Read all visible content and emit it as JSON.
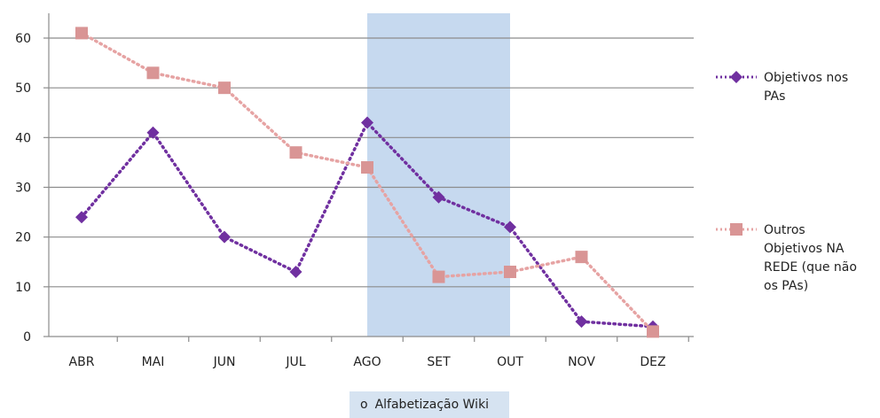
{
  "chart_data": {
    "type": "line",
    "categories": [
      "ABR",
      "MAI",
      "JUN",
      "JUL",
      "AGO",
      "SET",
      "OUT",
      "NOV",
      "DEZ"
    ],
    "ylim": [
      0,
      65
    ],
    "yticks": [
      0,
      10,
      20,
      30,
      40,
      50,
      60
    ],
    "grid": true,
    "legend_position": "right",
    "series": [
      {
        "name": "Objetivos nos PAs",
        "values": [
          24,
          41,
          20,
          13,
          43,
          28,
          22,
          3,
          2
        ],
        "color": "#7030a0",
        "marker": "diamond",
        "line_style": "dotted"
      },
      {
        "name": "Outros Objetivos NA REDE (que não os PAs)",
        "values": [
          61,
          53,
          50,
          37,
          34,
          12,
          13,
          16,
          1
        ],
        "color": "#e6a3a3",
        "marker_color": "#d99595",
        "marker": "square",
        "line_style": "dotted"
      }
    ],
    "highlight": {
      "from_category": "AGO",
      "to_category": "OUT",
      "color": "#c6d9ef"
    },
    "annotation": "Alfabetização Wiki",
    "annotation_bullet": "o"
  }
}
